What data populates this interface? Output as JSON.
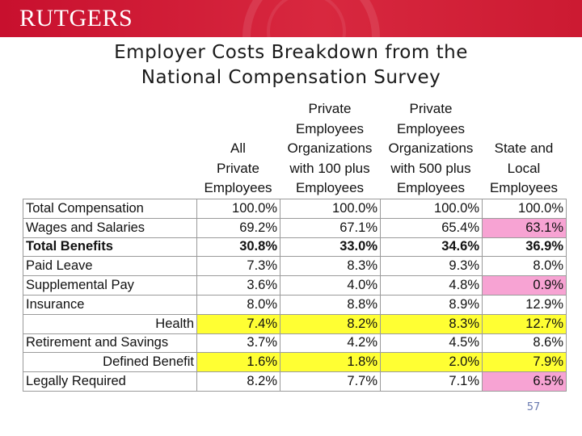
{
  "logo": "RUTGERS",
  "title": {
    "line1": "Employer Costs Breakdown from the",
    "line2": "National Compensation Survey"
  },
  "columns": [
    [
      "All",
      "Private",
      "Employees"
    ],
    [
      "Private",
      "Employees",
      "Organizations",
      "with 100 plus",
      "Employees"
    ],
    [
      "Private",
      "Employees",
      "Organizations",
      "with 500 plus",
      "Employees"
    ],
    [
      "State and",
      "Local",
      "Employees"
    ]
  ],
  "rows": [
    {
      "label": "Total Compensation",
      "values": [
        "100.0%",
        "100.0%",
        "100.0%",
        "100.0%"
      ],
      "bold": false,
      "align": "left",
      "highlight": [
        "",
        "",
        "",
        ""
      ]
    },
    {
      "label": "Wages and Salaries",
      "values": [
        "69.2%",
        "67.1%",
        "65.4%",
        "63.1%"
      ],
      "bold": false,
      "align": "left",
      "highlight": [
        "",
        "",
        "",
        "pink"
      ]
    },
    {
      "label": "Total Benefits",
      "values": [
        "30.8%",
        "33.0%",
        "34.6%",
        "36.9%"
      ],
      "bold": true,
      "align": "left",
      "highlight": [
        "",
        "",
        "",
        ""
      ]
    },
    {
      "label": "Paid Leave",
      "values": [
        "7.3%",
        "8.3%",
        "9.3%",
        "8.0%"
      ],
      "bold": false,
      "align": "left",
      "highlight": [
        "",
        "",
        "",
        ""
      ]
    },
    {
      "label": "Supplemental Pay",
      "values": [
        "3.6%",
        "4.0%",
        "4.8%",
        "0.9%"
      ],
      "bold": false,
      "align": "left",
      "highlight": [
        "",
        "",
        "",
        "pink"
      ]
    },
    {
      "label": "Insurance",
      "values": [
        "8.0%",
        "8.8%",
        "8.9%",
        "12.9%"
      ],
      "bold": false,
      "align": "left",
      "highlight": [
        "",
        "",
        "",
        ""
      ]
    },
    {
      "label": "Health",
      "values": [
        "7.4%",
        "8.2%",
        "8.3%",
        "12.7%"
      ],
      "bold": false,
      "align": "right",
      "highlight": [
        "yellow",
        "yellow",
        "yellow",
        "yellow"
      ]
    },
    {
      "label": "Retirement and Savings",
      "values": [
        "3.7%",
        "4.2%",
        "4.5%",
        "8.6%"
      ],
      "bold": false,
      "align": "left",
      "highlight": [
        "",
        "",
        "",
        ""
      ]
    },
    {
      "label": "Defined Benefit",
      "values": [
        "1.6%",
        "1.8%",
        "2.0%",
        "7.9%"
      ],
      "bold": false,
      "align": "right",
      "highlight": [
        "yellow",
        "yellow",
        "yellow",
        "yellow"
      ]
    },
    {
      "label": "Legally Required",
      "values": [
        "8.2%",
        "7.7%",
        "7.1%",
        "6.5%"
      ],
      "bold": false,
      "align": "left",
      "highlight": [
        "",
        "",
        "",
        "pink"
      ]
    }
  ],
  "page_number": "57",
  "colors": {
    "banner": "#c8102e",
    "highlight_yellow": "#ffff33",
    "highlight_pink": "#f7a3d3",
    "page_number": "#6a7bb0"
  }
}
